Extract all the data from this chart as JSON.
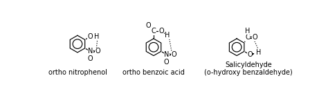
{
  "bg_color": "#ffffff",
  "label1": "ortho nitrophenol",
  "label2": "ortho benzoic acid",
  "label3_line1": "Salicyldehyde",
  "label3_line2": "(o-hydroxy benzaldehyde)",
  "font_size_labels": 7.0,
  "font_size_atoms": 7.0
}
